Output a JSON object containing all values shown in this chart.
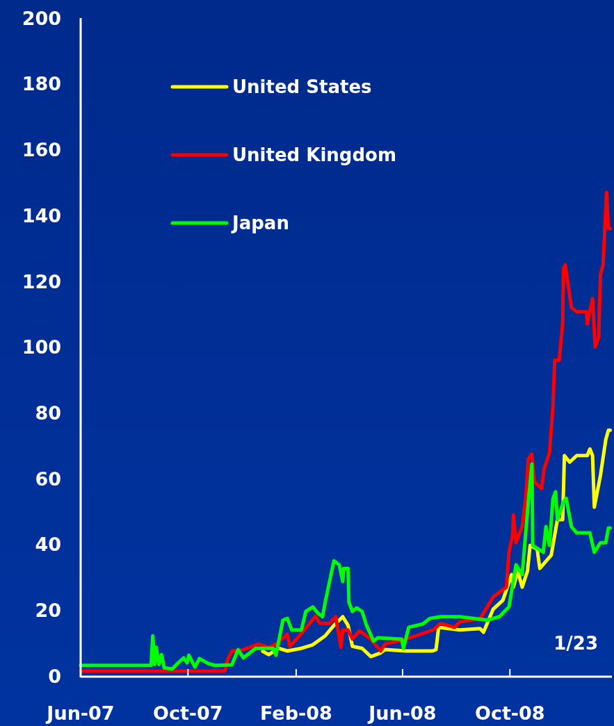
{
  "chart_data": {
    "type": "line",
    "annotations": [
      "1/23"
    ],
    "xlim": [
      "2007-06-01",
      "2009-01-25"
    ],
    "xticks": [
      {
        "value": "2007-06-01",
        "label": "Jun-07"
      },
      {
        "value": "2007-10-01",
        "label": "Oct-07"
      },
      {
        "value": "2008-02-01",
        "label": "Feb-08"
      },
      {
        "value": "2008-06-01",
        "label": "Jun-08"
      },
      {
        "value": "2008-10-01",
        "label": "Oct-08"
      }
    ],
    "ylim": [
      0,
      200
    ],
    "yticks": [
      0,
      20,
      40,
      60,
      80,
      100,
      120,
      140,
      160,
      180,
      200
    ],
    "grid": false,
    "legend": "top left",
    "marker": "none",
    "line_style": "solid",
    "series": [
      {
        "name": "United States",
        "color": "#ffff00",
        "x": [
          "2007-12-25",
          "2008-01-01",
          "2008-01-12",
          "2008-01-22",
          "2008-02-07",
          "2008-02-20",
          "2008-03-05",
          "2008-03-15",
          "2008-03-25",
          "2008-03-31",
          "2008-04-05",
          "2008-04-16",
          "2008-04-26",
          "2008-05-07",
          "2008-05-12",
          "2008-06-05",
          "2008-07-05",
          "2008-07-09",
          "2008-07-12",
          "2008-08-05",
          "2008-08-28",
          "2008-09-01",
          "2008-09-12",
          "2008-09-23",
          "2008-10-03",
          "2008-10-05",
          "2008-10-10",
          "2008-10-15",
          "2008-10-21",
          "2008-10-24",
          "2008-11-01",
          "2008-11-04",
          "2008-11-17",
          "2008-11-24",
          "2008-11-30",
          "2008-12-02",
          "2008-12-08",
          "2008-12-16",
          "2008-12-28",
          "2008-12-31",
          "2009-01-03",
          "2009-01-05",
          "2009-01-12",
          "2009-01-18",
          "2009-01-21",
          "2009-01-23"
        ],
        "values": [
          7.5,
          6.5,
          8.4,
          7.6,
          8.4,
          9.5,
          12.2,
          15.4,
          18,
          15.4,
          9,
          8.4,
          5.9,
          7,
          8,
          7.6,
          7.6,
          8,
          14.8,
          14,
          14.4,
          13.3,
          20.3,
          23,
          30.8,
          27,
          31.9,
          27,
          31.9,
          39.7,
          38.6,
          32.7,
          36.7,
          47.5,
          47.5,
          67,
          65,
          67,
          67,
          69,
          67,
          51.3,
          61,
          71.8,
          74.7,
          74.7
        ]
      },
      {
        "name": "United Kingdom",
        "color": "#ff0000",
        "x": [
          "2007-06-01",
          "2007-11-12",
          "2007-11-15",
          "2007-11-20",
          "2007-12-03",
          "2007-12-20",
          "2008-01-01",
          "2008-01-09",
          "2008-01-22",
          "2008-01-25",
          "2008-02-07",
          "2008-02-23",
          "2008-02-28",
          "2008-03-10",
          "2008-03-17",
          "2008-03-23",
          "2008-03-25",
          "2008-03-31",
          "2008-04-05",
          "2008-04-13",
          "2008-04-26",
          "2008-05-07",
          "2008-05-12",
          "2008-06-05",
          "2008-07-06",
          "2008-07-14",
          "2008-07-30",
          "2008-08-05",
          "2008-08-28",
          "2008-09-12",
          "2008-09-27",
          "2008-09-30",
          "2008-10-04",
          "2008-10-05",
          "2008-10-08",
          "2008-10-15",
          "2008-10-19",
          "2008-10-22",
          "2008-10-26",
          "2008-10-29",
          "2008-11-06",
          "2008-11-09",
          "2008-11-15",
          "2008-11-19",
          "2008-11-21",
          "2008-11-26",
          "2008-11-30",
          "2008-12-01",
          "2008-12-03",
          "2008-12-10",
          "2008-12-16",
          "2008-12-27",
          "2008-12-28",
          "2009-01-03",
          "2009-01-06",
          "2009-01-10",
          "2009-01-12",
          "2009-01-15",
          "2009-01-18",
          "2009-01-19",
          "2009-01-21",
          "2009-01-23"
        ],
        "values": [
          1.5,
          1.5,
          4.9,
          7.6,
          8,
          9.7,
          8.7,
          9.7,
          12.7,
          9,
          12.9,
          18.2,
          16,
          16,
          18,
          8.7,
          14,
          14,
          11.2,
          13.7,
          11.2,
          7.6,
          9.7,
          11.2,
          14,
          16,
          14.8,
          16.5,
          17.3,
          24,
          27,
          37.6,
          42.6,
          49,
          40.5,
          45.4,
          54,
          66,
          67.4,
          59,
          57,
          63,
          67.8,
          82,
          96,
          96,
          107,
          124,
          125,
          112,
          110.7,
          110.7,
          107,
          114.7,
          100,
          103,
          122,
          125,
          142,
          147,
          136,
          136
        ]
      },
      {
        "name": "Japan",
        "color": "#00ff00",
        "x": [
          "2007-06-01",
          "2007-08-20",
          "2007-08-22",
          "2007-08-24",
          "2007-08-26",
          "2007-08-29",
          "2007-09-01",
          "2007-09-04",
          "2007-09-13",
          "2007-09-20",
          "2007-09-26",
          "2007-09-30",
          "2007-10-02",
          "2007-10-09",
          "2007-10-14",
          "2007-10-24",
          "2007-11-01",
          "2007-11-20",
          "2007-11-27",
          "2007-12-03",
          "2007-12-17",
          "2008-01-06",
          "2008-01-09",
          "2008-01-17",
          "2008-01-22",
          "2008-01-27",
          "2008-02-07",
          "2008-02-12",
          "2008-02-20",
          "2008-02-26",
          "2008-03-02",
          "2008-03-05",
          "2008-03-10",
          "2008-03-15",
          "2008-03-21",
          "2008-03-25",
          "2008-03-26",
          "2008-03-31",
          "2008-04-01",
          "2008-04-05",
          "2008-04-10",
          "2008-04-16",
          "2008-04-21",
          "2008-04-29",
          "2008-05-04",
          "2008-05-31",
          "2008-06-02",
          "2008-06-08",
          "2008-06-24",
          "2008-07-02",
          "2008-07-14",
          "2008-08-05",
          "2008-09-05",
          "2008-09-19",
          "2008-09-30",
          "2008-10-08",
          "2008-10-15",
          "2008-10-22",
          "2008-10-26",
          "2008-10-27",
          "2008-11-08",
          "2008-11-11",
          "2008-11-15",
          "2008-11-19",
          "2008-11-22",
          "2008-11-24",
          "2008-12-01",
          "2008-12-04",
          "2008-12-10",
          "2008-12-16",
          "2008-12-31",
          "2009-01-05",
          "2009-01-12",
          "2009-01-18",
          "2009-01-21",
          "2009-01-23"
        ],
        "values": [
          3.2,
          3.2,
          12.2,
          3.5,
          8.7,
          3.5,
          6.5,
          2.5,
          2.1,
          4,
          5.5,
          4,
          6.3,
          2.7,
          5.3,
          3.8,
          3.2,
          3.4,
          8,
          5.5,
          8.4,
          8.4,
          6.3,
          17,
          17.5,
          14,
          14,
          19.6,
          21,
          19,
          18,
          22.4,
          28.7,
          35,
          33.8,
          28.7,
          32.7,
          32.7,
          22.4,
          19.6,
          20.7,
          19.6,
          15.4,
          10.6,
          11.6,
          11.2,
          8.4,
          14.8,
          15.8,
          17.5,
          18,
          18,
          17,
          18,
          21,
          33.8,
          30.8,
          53,
          64.4,
          39.7,
          37.6,
          45.4,
          39.7,
          54,
          56,
          47.5,
          53,
          54,
          45.4,
          43.5,
          43.5,
          37.6,
          40.5,
          40.5,
          45,
          45
        ]
      }
    ]
  }
}
